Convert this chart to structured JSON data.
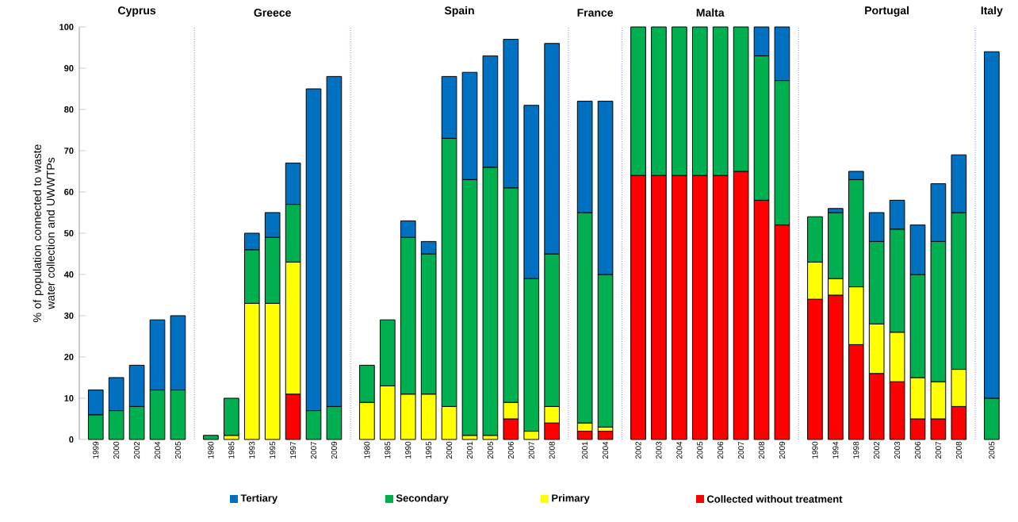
{
  "chart_data": [
    {
      "type": "bar",
      "stacked": true,
      "title": "Cyprus",
      "ylabel": "% of population connected to waste water collection and UWWTPs",
      "legend": "bottom",
      "ylim": [
        0,
        100
      ],
      "yticks": [
        0,
        10,
        20,
        30,
        40,
        50,
        60,
        70,
        80,
        90,
        100
      ],
      "categories": [
        "1999",
        "2000",
        "2002",
        "2004",
        "2005"
      ],
      "series": [
        {
          "name": "Collected without treatment",
          "color": "#ff0000",
          "values": [
            null,
            null,
            null,
            null,
            null
          ]
        },
        {
          "name": "Primary",
          "color": "#ffff00",
          "values": [
            null,
            null,
            null,
            null,
            null
          ]
        },
        {
          "name": "Secondary",
          "color": "#00b050",
          "values": [
            6,
            7,
            8,
            12,
            12
          ]
        },
        {
          "name": "Tertiary",
          "color": "#0070c0",
          "values": [
            6,
            8,
            10,
            17,
            18
          ]
        }
      ]
    },
    {
      "type": "bar",
      "stacked": true,
      "title": "Greece",
      "tick_labels": "x",
      "ylim": [
        0,
        100
      ],
      "categories": [
        "1980",
        "1985",
        "1993",
        "1995",
        "1997",
        "2007",
        "2009"
      ],
      "series": [
        {
          "color": "#ff0000",
          "values": [
            null,
            null,
            null,
            null,
            11,
            null,
            null
          ]
        },
        {
          "color": "#ffff00",
          "values": [
            null,
            1,
            33,
            33,
            32,
            null,
            null
          ]
        },
        {
          "color": "#00b050",
          "values": [
            1,
            9,
            13,
            16,
            14,
            7,
            8
          ]
        },
        {
          "color": "#0070c0",
          "values": [
            null,
            null,
            4,
            6,
            10,
            78,
            80
          ]
        }
      ]
    },
    {
      "type": "bar",
      "stacked": true,
      "title": "Spain",
      "tick_labels": "x",
      "ylim": [
        0,
        100
      ],
      "categories": [
        "1980",
        "1985",
        "1990",
        "1995",
        "2000",
        "2001",
        "2005",
        "2006",
        "2007",
        "2008"
      ],
      "series": [
        {
          "color": "#ff0000",
          "values": [
            null,
            null,
            null,
            null,
            null,
            null,
            null,
            5,
            null,
            4
          ]
        },
        {
          "color": "#ffff00",
          "values": [
            9,
            13,
            11,
            11,
            8,
            1,
            1,
            4,
            2,
            4
          ]
        },
        {
          "color": "#00b050",
          "values": [
            9,
            16,
            38,
            34,
            65,
            62,
            65,
            52,
            37,
            37
          ]
        },
        {
          "color": "#0070c0",
          "values": [
            null,
            null,
            4,
            3,
            15,
            26,
            27,
            36,
            42,
            51
          ]
        }
      ]
    },
    {
      "type": "bar",
      "stacked": true,
      "title": "France",
      "tick_labels": "x",
      "ylim": [
        0,
        100
      ],
      "categories": [
        "2001",
        "2004"
      ],
      "series": [
        {
          "color": "#ff0000",
          "values": [
            2,
            2
          ]
        },
        {
          "color": "#ffff00",
          "values": [
            2,
            1
          ]
        },
        {
          "color": "#00b050",
          "values": [
            51,
            37
          ]
        },
        {
          "color": "#0070c0",
          "values": [
            27,
            42
          ]
        }
      ]
    },
    {
      "type": "bar",
      "stacked": true,
      "title": "Malta",
      "tick_labels": "x",
      "ylim": [
        0,
        100
      ],
      "categories": [
        "2002",
        "2003",
        "2004",
        "2005",
        "2006",
        "2007",
        "2008",
        "2009"
      ],
      "series": [
        {
          "color": "#ff0000",
          "values": [
            64,
            64,
            64,
            64,
            64,
            65,
            58,
            52
          ]
        },
        {
          "color": "#00b050",
          "values": [
            36,
            36,
            36,
            36,
            36,
            35,
            35,
            35
          ]
        },
        {
          "color": "#0070c0",
          "values": [
            null,
            null,
            null,
            null,
            null,
            null,
            7,
            13
          ]
        }
      ]
    },
    {
      "type": "bar",
      "stacked": true,
      "title": "Portugal",
      "tick_labels": "x",
      "ylim": [
        0,
        100
      ],
      "categories": [
        "1990",
        "1994",
        "1998",
        "2002",
        "2003",
        "2006",
        "2007",
        "2008"
      ],
      "series": [
        {
          "color": "#ff0000",
          "values": [
            34,
            35,
            23,
            16,
            14,
            5,
            5,
            8
          ]
        },
        {
          "color": "#ffff00",
          "values": [
            9,
            4,
            14,
            12,
            12,
            10,
            9,
            9
          ]
        },
        {
          "color": "#00b050",
          "values": [
            11,
            16,
            26,
            20,
            25,
            25,
            34,
            38
          ]
        },
        {
          "color": "#0070c0",
          "values": [
            null,
            1,
            2,
            7,
            7,
            12,
            14,
            14
          ]
        }
      ]
    },
    {
      "type": "bar",
      "stacked": true,
      "title": "Italy",
      "tick_labels": "x",
      "ylim": [
        0,
        100
      ],
      "categories": [
        "2005"
      ],
      "series": [
        {
          "color": "#00b050",
          "values": [
            10
          ]
        },
        {
          "color": "#0070c0",
          "values": [
            84
          ]
        }
      ]
    }
  ]
}
